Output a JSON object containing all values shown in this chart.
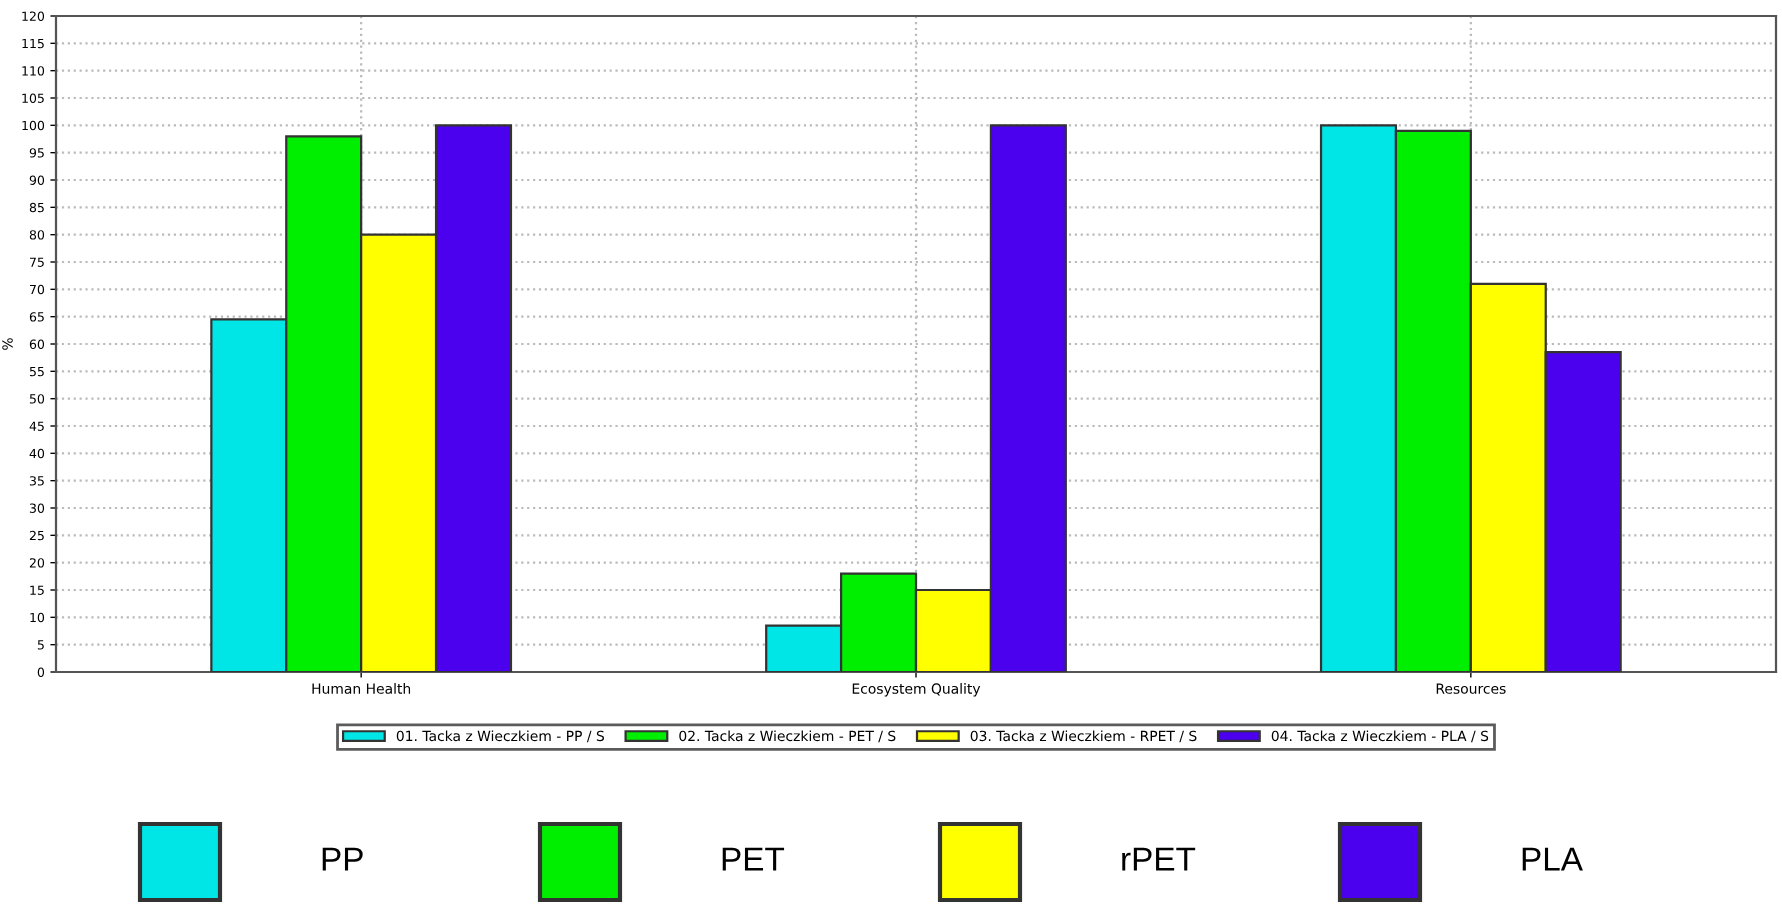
{
  "chart_data": {
    "type": "bar",
    "ylabel": "%",
    "categories": [
      "Human Health",
      "Ecosystem Quality",
      "Resources"
    ],
    "series": [
      {
        "name": "01. Tacka z Wieczkiem - PP / S",
        "color": "#00e5e5",
        "values": [
          64.5,
          8.5,
          100
        ]
      },
      {
        "name": "02. Tacka z Wieczkiem - PET / S",
        "color": "#00ee00",
        "values": [
          98,
          18,
          99
        ]
      },
      {
        "name": "03. Tacka z Wieczkiem - RPET / S",
        "color": "#ffff00",
        "values": [
          80,
          15,
          71
        ]
      },
      {
        "name": "04. Tacka z Wieczkiem - PLA / S",
        "color": "#4b00ee",
        "values": [
          100,
          100,
          58.5
        ]
      }
    ],
    "ylim": [
      0,
      120
    ],
    "yticks": [
      0,
      5,
      10,
      15,
      20,
      25,
      30,
      35,
      40,
      45,
      50,
      55,
      60,
      65,
      70,
      75,
      80,
      85,
      90,
      95,
      100,
      105,
      110,
      115,
      120
    ],
    "grid": true,
    "legend": "bottom",
    "annotations": [
      "PP",
      "PET",
      "rPET",
      "PLA"
    ]
  }
}
